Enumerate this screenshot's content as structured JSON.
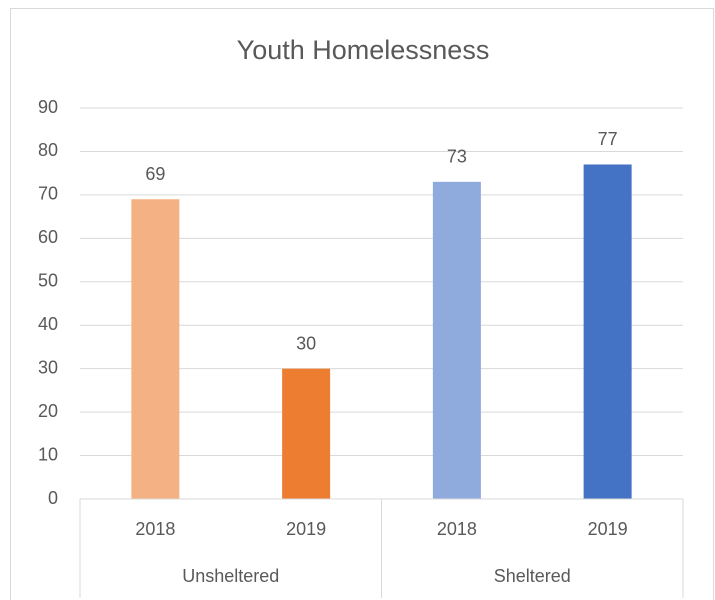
{
  "chart_data": {
    "type": "bar",
    "title": "Youth Homelessness",
    "categories": [
      "2018",
      "2019",
      "2018",
      "2019"
    ],
    "group_labels": [
      "Unsheltered",
      "Sheltered"
    ],
    "values": [
      69,
      30,
      73,
      77
    ],
    "colors": [
      "#f4b183",
      "#ed7d31",
      "#8faadc",
      "#4472c4"
    ],
    "ylim": [
      0,
      90
    ],
    "yticks": [
      0,
      10,
      20,
      30,
      40,
      50,
      60,
      70,
      80,
      90
    ],
    "grid": true
  }
}
